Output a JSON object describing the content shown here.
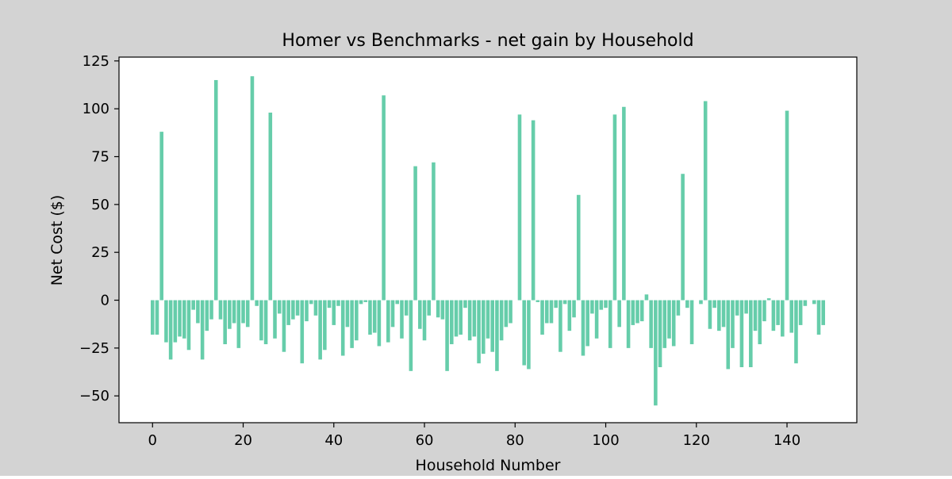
{
  "figure": {
    "background": "#d3d3d3",
    "plot_background": "#ffffff"
  },
  "chart_data": {
    "type": "bar",
    "title": "Homer vs Benchmarks - net gain by Household",
    "xlabel": "Household Number",
    "ylabel": "Net Cost ($)",
    "xlim": [
      -7.4,
      155.4
    ],
    "ylim": [
      -64,
      127
    ],
    "xticks": [
      0,
      20,
      40,
      60,
      80,
      100,
      120,
      140
    ],
    "yticks": [
      -50,
      -25,
      0,
      25,
      50,
      75,
      100,
      125
    ],
    "bar_color": "#66cdaa",
    "grid": false,
    "legend": "none",
    "x": [
      0,
      1,
      2,
      3,
      4,
      5,
      6,
      7,
      8,
      9,
      10,
      11,
      12,
      13,
      14,
      15,
      16,
      17,
      18,
      19,
      20,
      21,
      22,
      23,
      24,
      25,
      26,
      27,
      28,
      29,
      30,
      31,
      32,
      33,
      34,
      35,
      36,
      37,
      38,
      39,
      40,
      41,
      42,
      43,
      44,
      45,
      46,
      47,
      48,
      49,
      50,
      51,
      52,
      53,
      54,
      55,
      56,
      57,
      58,
      59,
      60,
      61,
      62,
      63,
      64,
      65,
      66,
      67,
      68,
      69,
      70,
      71,
      72,
      73,
      74,
      75,
      76,
      77,
      78,
      79,
      80,
      81,
      82,
      83,
      84,
      85,
      86,
      87,
      88,
      89,
      90,
      91,
      92,
      93,
      94,
      95,
      96,
      97,
      98,
      99,
      100,
      101,
      102,
      103,
      104,
      105,
      106,
      107,
      108,
      109,
      110,
      111,
      112,
      113,
      114,
      115,
      116,
      117,
      118,
      119,
      120,
      121,
      122,
      123,
      124,
      125,
      126,
      127,
      128,
      129,
      130,
      131,
      132,
      133,
      134,
      135,
      136,
      137,
      138,
      139,
      140,
      141,
      142,
      143,
      144,
      145,
      146,
      147,
      148
    ],
    "values": [
      -18,
      -18,
      88,
      -22,
      -31,
      -22,
      -19,
      -20,
      -26,
      -5,
      -12,
      -31,
      -16,
      -10,
      115,
      -10,
      -23,
      -15,
      -12,
      -25,
      -12,
      -14,
      117,
      -3,
      -21,
      -23,
      98,
      -20,
      -7,
      -27,
      -13,
      -10,
      -8,
      -33,
      -11,
      -2,
      -8,
      -31,
      -26,
      -4,
      -13,
      -3,
      -29,
      -14,
      -25,
      -21,
      -2,
      -1,
      -18,
      -17,
      -24,
      107,
      -22,
      -14,
      -2,
      -20,
      -8,
      -37,
      70,
      -15,
      -21,
      -8,
      72,
      -9,
      -10,
      -37,
      -23,
      -19,
      -18,
      -4,
      -21,
      -19,
      -33,
      -28,
      -20,
      -27,
      -37,
      -21,
      -14,
      -12,
      0,
      97,
      -34,
      -36,
      94,
      -1,
      -18,
      -12,
      -12,
      -4,
      -27,
      -2,
      -16,
      -9,
      55,
      -29,
      -24,
      -7,
      -20,
      -5,
      -4,
      -25,
      97,
      -14,
      101,
      -25,
      -13,
      -12,
      -11,
      3,
      -25,
      -55,
      -35,
      -25,
      -20,
      -24,
      -8,
      66,
      -4,
      -23,
      0,
      -2,
      104,
      -15,
      -4,
      -16,
      -14,
      -36,
      -25,
      -8,
      -35,
      -7,
      -35,
      -16,
      -23,
      -11,
      1,
      -16,
      -13,
      -19,
      99,
      -17,
      -33,
      -13,
      -3,
      0,
      -2,
      -18,
      -13
    ]
  }
}
